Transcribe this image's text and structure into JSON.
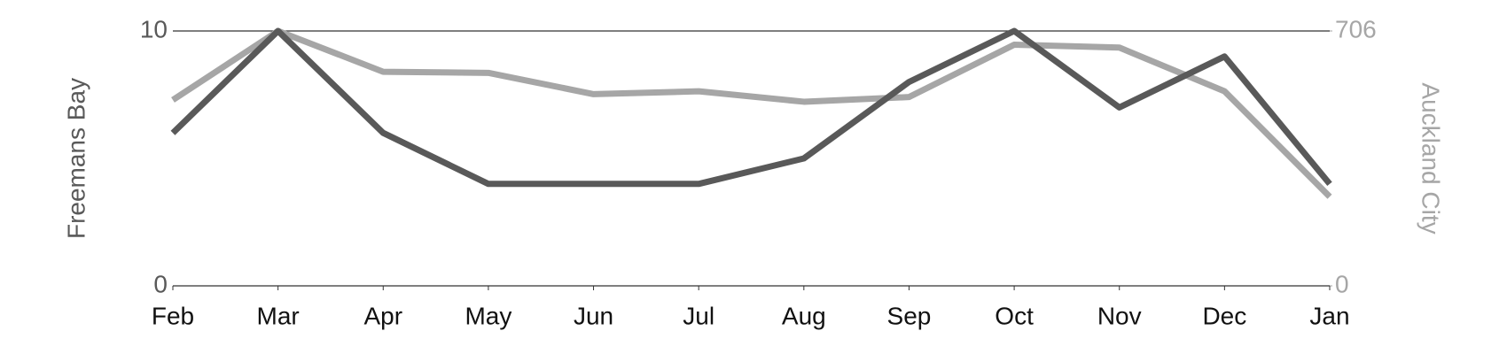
{
  "chart_data": {
    "type": "line",
    "categories": [
      "Feb",
      "Mar",
      "Apr",
      "May",
      "Jun",
      "Jul",
      "Aug",
      "Sep",
      "Oct",
      "Nov",
      "Dec",
      "Jan"
    ],
    "ylabel": "Freemans Bay",
    "y2label": "Auckland City",
    "ylim": [
      0,
      10
    ],
    "yticks": [
      0,
      10
    ],
    "y2lim": [
      0,
      706
    ],
    "y2ticks": [
      0,
      706
    ],
    "grid": true,
    "series": [
      {
        "name": "Freemans Bay",
        "color": "#595959",
        "values": [
          6,
          10,
          6,
          4,
          4,
          4,
          5,
          8,
          10,
          7,
          9,
          4
        ]
      },
      {
        "name": "Auckland City",
        "color": "#a6a6a6",
        "axis": "y2",
        "values": [
          515,
          706,
          593,
          590,
          531,
          539,
          510,
          523,
          668,
          660,
          539,
          247
        ]
      }
    ]
  }
}
